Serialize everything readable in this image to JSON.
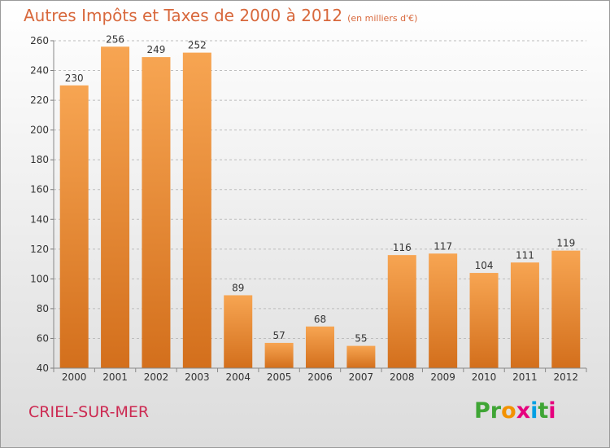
{
  "chart_data": {
    "type": "bar",
    "title": "Autres Impôts et Taxes de 2000 à 2012",
    "subtitle": "(en milliers d'€)",
    "categories": [
      "2000",
      "2001",
      "2002",
      "2003",
      "2004",
      "2005",
      "2006",
      "2007",
      "2008",
      "2009",
      "2010",
      "2011",
      "2012"
    ],
    "values": [
      230,
      256,
      249,
      252,
      89,
      57,
      68,
      55,
      116,
      117,
      104,
      111,
      119
    ],
    "ylim": [
      40,
      260
    ],
    "yticks": [
      "40",
      "60",
      "80",
      "100",
      "120",
      "140",
      "160",
      "180",
      "200",
      "220",
      "240",
      "260"
    ],
    "grid": "horizontal-dashed",
    "bar_color": "#f0913a"
  },
  "footer": {
    "city": "CRIEL-SUR-MER",
    "logo_letters": [
      "P",
      "r",
      "o",
      "x",
      "i",
      "t",
      "i"
    ],
    "logo_colors": [
      "#3fa535",
      "#3fa535",
      "#f39200",
      "#e6007e",
      "#009fe3",
      "#3fa535",
      "#e6007e"
    ]
  }
}
